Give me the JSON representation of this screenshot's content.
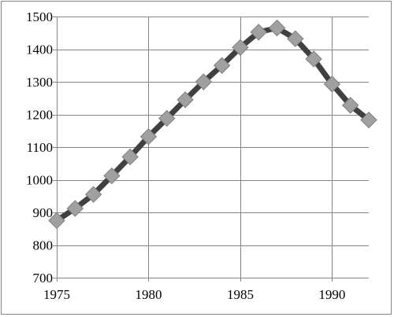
{
  "chart_data": {
    "type": "line",
    "title": "",
    "xlabel": "",
    "ylabel": "",
    "x": [
      1975,
      1976,
      1977,
      1978,
      1979,
      1980,
      1981,
      1982,
      1983,
      1984,
      1985,
      1986,
      1987,
      1988,
      1989,
      1990,
      1991,
      1992
    ],
    "series": [
      {
        "values": [
          875,
          912,
          955,
          1012,
          1070,
          1132,
          1188,
          1245,
          1300,
          1350,
          1405,
          1452,
          1465,
          1432,
          1370,
          1293,
          1228,
          1183
        ]
      }
    ],
    "xlim": [
      1975,
      1992
    ],
    "ylim": [
      700,
      1500
    ],
    "xticks": [
      "1975",
      "1980",
      "1985",
      "1990"
    ],
    "yticks": [
      "700",
      "800",
      "900",
      "1000",
      "1100",
      "1200",
      "1300",
      "1400",
      "1500"
    ],
    "grid": true,
    "legend": "none",
    "line_color": "#404040",
    "marker_fill": "#a0a0a0",
    "marker_stroke": "#7f7f7f",
    "marker_shape": "diamond"
  }
}
